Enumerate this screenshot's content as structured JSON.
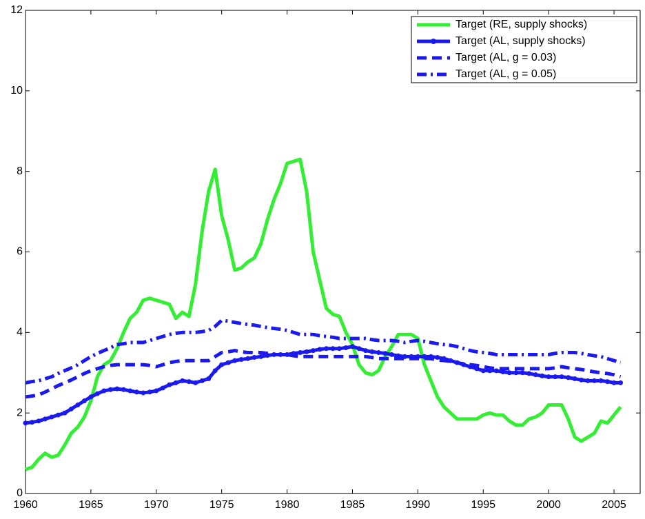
{
  "chart_data": {
    "type": "line",
    "x": [
      1960,
      1960.5,
      1961,
      1961.5,
      1962,
      1962.5,
      1963,
      1963.5,
      1964,
      1964.5,
      1965,
      1965.5,
      1966,
      1966.5,
      1967,
      1967.5,
      1968,
      1968.5,
      1969,
      1969.5,
      1970,
      1970.5,
      1971,
      1971.5,
      1972,
      1972.5,
      1973,
      1973.5,
      1974,
      1974.5,
      1975,
      1975.5,
      1976,
      1976.5,
      1977,
      1977.5,
      1978,
      1978.5,
      1979,
      1979.5,
      1980,
      1980.5,
      1981,
      1981.5,
      1982,
      1982.5,
      1983,
      1983.5,
      1984,
      1984.5,
      1985,
      1985.5,
      1986,
      1986.5,
      1987,
      1987.5,
      1988,
      1988.5,
      1989,
      1989.5,
      1990,
      1990.5,
      1991,
      1991.5,
      1992,
      1992.5,
      1993,
      1993.5,
      1994,
      1994.5,
      1995,
      1995.5,
      1996,
      1996.5,
      1997,
      1997.5,
      1998,
      1998.5,
      1999,
      1999.5,
      2000,
      2000.5,
      2001,
      2001.5,
      2002,
      2002.5,
      2003,
      2003.5,
      2004,
      2004.5,
      2005,
      2005.5
    ],
    "series": [
      {
        "name": "Target (RE, supply shocks)",
        "color": "#33ee33",
        "linestyle": "solid",
        "marker": false,
        "values": [
          0.6,
          0.65,
          0.85,
          1.0,
          0.9,
          0.95,
          1.2,
          1.5,
          1.65,
          1.9,
          2.3,
          2.9,
          3.2,
          3.3,
          3.6,
          4.0,
          4.35,
          4.5,
          4.8,
          4.85,
          4.8,
          4.75,
          4.7,
          4.35,
          4.5,
          4.4,
          5.2,
          6.5,
          7.5,
          8.05,
          6.9,
          6.3,
          5.55,
          5.6,
          5.75,
          5.85,
          6.2,
          6.8,
          7.3,
          7.7,
          8.2,
          8.25,
          8.3,
          7.5,
          6.0,
          5.3,
          4.6,
          4.45,
          4.4,
          4.0,
          3.7,
          3.2,
          3.0,
          2.95,
          3.05,
          3.4,
          3.65,
          3.95,
          3.95,
          3.95,
          3.85,
          3.2,
          2.8,
          2.4,
          2.15,
          2.0,
          1.85,
          1.85,
          1.85,
          1.85,
          1.95,
          2.0,
          1.95,
          1.95,
          1.8,
          1.7,
          1.7,
          1.85,
          1.9,
          2.0,
          2.2,
          2.2,
          2.2,
          1.85,
          1.4,
          1.3,
          1.4,
          1.5,
          1.8,
          1.75,
          1.95,
          2.15
        ]
      },
      {
        "name": "Target (AL, supply shocks)",
        "color": "#1a1aee",
        "linestyle": "solid",
        "marker": true,
        "values": [
          1.75,
          1.77,
          1.8,
          1.85,
          1.9,
          1.95,
          2.0,
          2.1,
          2.2,
          2.3,
          2.4,
          2.48,
          2.55,
          2.58,
          2.6,
          2.58,
          2.55,
          2.52,
          2.5,
          2.52,
          2.55,
          2.62,
          2.7,
          2.75,
          2.8,
          2.78,
          2.75,
          2.8,
          2.85,
          3.05,
          3.2,
          3.25,
          3.3,
          3.33,
          3.35,
          3.38,
          3.4,
          3.43,
          3.45,
          3.45,
          3.45,
          3.48,
          3.5,
          3.52,
          3.55,
          3.58,
          3.6,
          3.6,
          3.6,
          3.62,
          3.65,
          3.6,
          3.55,
          3.52,
          3.5,
          3.48,
          3.45,
          3.42,
          3.4,
          3.4,
          3.4,
          3.4,
          3.4,
          3.38,
          3.35,
          3.3,
          3.25,
          3.2,
          3.15,
          3.1,
          3.05,
          3.05,
          3.05,
          3.02,
          3.0,
          3.0,
          3.0,
          2.98,
          2.95,
          2.92,
          2.9,
          2.9,
          2.9,
          2.88,
          2.85,
          2.82,
          2.8,
          2.8,
          2.8,
          2.78,
          2.75,
          2.75
        ]
      },
      {
        "name": "Target (AL, g = 0.03)",
        "color": "#1a1aee",
        "linestyle": "dashed",
        "marker": false,
        "values": [
          2.4,
          2.42,
          2.45,
          2.52,
          2.6,
          2.68,
          2.75,
          2.82,
          2.9,
          2.98,
          3.05,
          3.1,
          3.15,
          3.18,
          3.2,
          3.2,
          3.2,
          3.2,
          3.2,
          3.18,
          3.15,
          3.2,
          3.25,
          3.28,
          3.3,
          3.3,
          3.3,
          3.3,
          3.3,
          3.4,
          3.5,
          3.52,
          3.55,
          3.52,
          3.5,
          3.5,
          3.5,
          3.48,
          3.45,
          3.45,
          3.45,
          3.42,
          3.4,
          3.4,
          3.4,
          3.4,
          3.4,
          3.4,
          3.4,
          3.4,
          3.4,
          3.4,
          3.4,
          3.38,
          3.35,
          3.35,
          3.35,
          3.35,
          3.35,
          3.35,
          3.35,
          3.35,
          3.35,
          3.32,
          3.3,
          3.28,
          3.25,
          3.22,
          3.2,
          3.18,
          3.15,
          3.12,
          3.1,
          3.1,
          3.1,
          3.1,
          3.1,
          3.1,
          3.1,
          3.1,
          3.1,
          3.12,
          3.15,
          3.12,
          3.1,
          3.08,
          3.05,
          3.02,
          3.0,
          2.98,
          2.95,
          2.9
        ]
      },
      {
        "name": "Target (AL, g = 0.05)",
        "color": "#1a1aee",
        "linestyle": "dashdot",
        "marker": false,
        "values": [
          2.75,
          2.78,
          2.8,
          2.85,
          2.9,
          2.98,
          3.05,
          3.12,
          3.2,
          3.3,
          3.4,
          3.48,
          3.55,
          3.62,
          3.7,
          3.72,
          3.75,
          3.75,
          3.75,
          3.8,
          3.85,
          3.9,
          3.95,
          3.98,
          4.0,
          4.0,
          4.0,
          4.02,
          4.05,
          4.15,
          4.3,
          4.28,
          4.25,
          4.22,
          4.2,
          4.18,
          4.15,
          4.12,
          4.1,
          4.08,
          4.05,
          4.0,
          3.95,
          3.95,
          3.95,
          3.92,
          3.9,
          3.88,
          3.85,
          3.85,
          3.85,
          3.85,
          3.85,
          3.82,
          3.8,
          3.8,
          3.8,
          3.78,
          3.75,
          3.78,
          3.8,
          3.78,
          3.75,
          3.72,
          3.7,
          3.68,
          3.65,
          3.6,
          3.55,
          3.52,
          3.5,
          3.48,
          3.45,
          3.45,
          3.45,
          3.45,
          3.45,
          3.45,
          3.45,
          3.45,
          3.45,
          3.48,
          3.5,
          3.5,
          3.5,
          3.48,
          3.45,
          3.42,
          3.4,
          3.35,
          3.3,
          3.25
        ]
      }
    ],
    "xlim": [
      1960,
      2007
    ],
    "xticks": [
      1960,
      1965,
      1970,
      1975,
      1980,
      1985,
      1990,
      1995,
      2000,
      2005
    ],
    "ylim": [
      0,
      12
    ],
    "yticks": [
      0,
      2,
      4,
      6,
      8,
      10,
      12
    ],
    "grid": false,
    "legend": "upper right"
  }
}
